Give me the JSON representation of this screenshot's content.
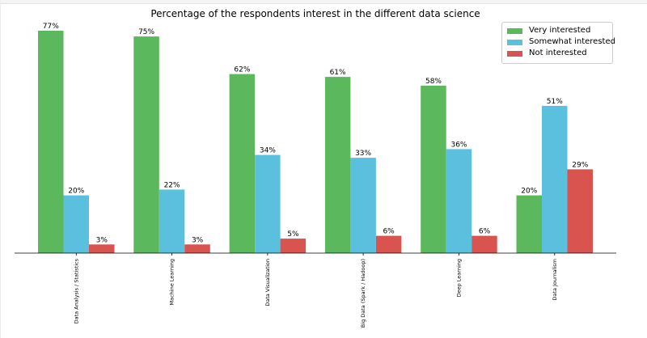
{
  "chart_data": {
    "type": "bar",
    "title": "Percentage of the respondents interest in the different data science",
    "categories": [
      "Data Analysis / Statistics",
      "Machine Learning",
      "Data Visualization",
      "Big Data (Spark / Hadoop)",
      "Deep Learning",
      "Data Journalism"
    ],
    "series": [
      {
        "name": "Very interested",
        "color": "#5cb85c",
        "values": [
          77,
          75,
          62,
          61,
          58,
          20
        ]
      },
      {
        "name": "Somewhat interested",
        "color": "#5bc0de",
        "values": [
          20,
          22,
          34,
          33,
          36,
          51
        ]
      },
      {
        "name": "Not interested",
        "color": "#d9534f",
        "values": [
          3,
          3,
          5,
          6,
          6,
          29
        ]
      }
    ],
    "value_labels": [
      [
        "77%",
        "75%",
        "62%",
        "61%",
        "58%",
        "20%"
      ],
      [
        "20%",
        "22%",
        "34%",
        "33%",
        "36%",
        "51%"
      ],
      [
        "3%",
        "3%",
        "5%",
        "6%",
        "6%",
        "29%"
      ]
    ],
    "ylim": [
      0,
      77
    ],
    "grid": false,
    "legend_position": "top-right"
  }
}
